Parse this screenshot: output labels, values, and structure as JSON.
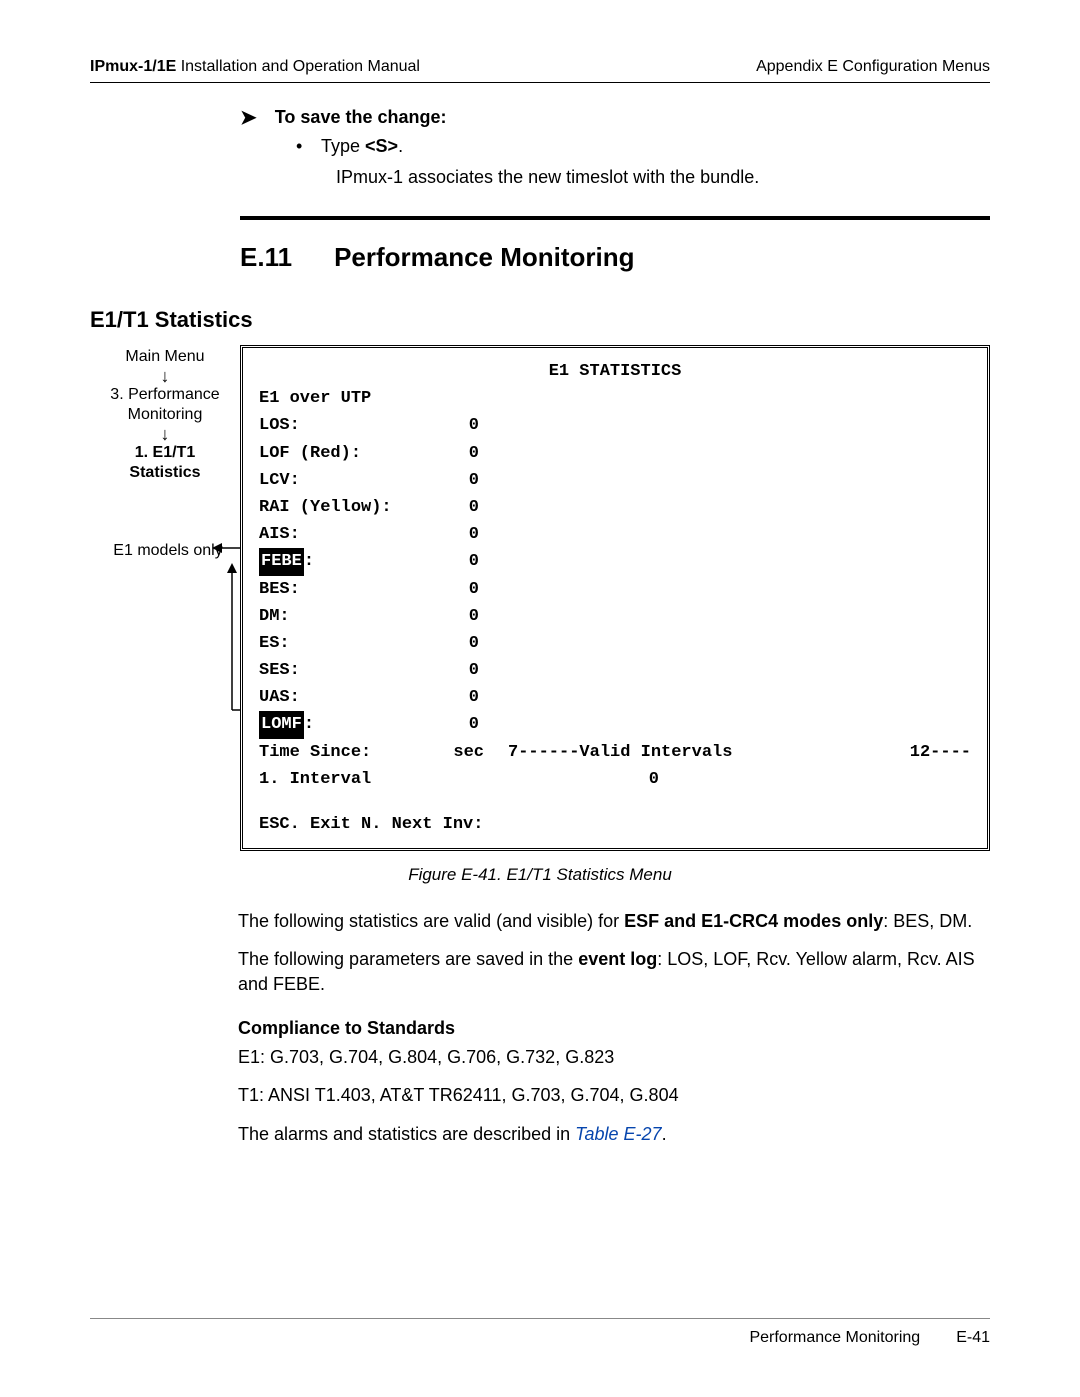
{
  "header": {
    "manual_title_prefix": "IPmux-1/1E",
    "manual_title_rest": " Installation and Operation Manual",
    "appendix": "Appendix E  Configuration Menus"
  },
  "save": {
    "heading": "To save the change:",
    "bullet": "Type ",
    "key": "<S>",
    "tail": ".",
    "assoc": "IPmux-1 associates the new timeslot with the bundle."
  },
  "section": {
    "number": "E.11",
    "title": "Performance Monitoring"
  },
  "subhead": "E1/T1 Statistics",
  "sidebar": {
    "items": [
      "Main Menu",
      "3. Performance",
      "Monitoring",
      "1. E1/T1",
      "Statistics"
    ]
  },
  "annotation": "E1 models only",
  "terminal": {
    "title": "E1 STATISTICS",
    "subtitle": "E1 over UTP",
    "stats": [
      {
        "label": "LOS:",
        "value": "0",
        "invert": false
      },
      {
        "label": "LOF (Red):",
        "value": "0",
        "invert": false
      },
      {
        "label": "LCV:",
        "value": "0",
        "invert": false
      },
      {
        "label": "RAI (Yellow):",
        "value": "0",
        "invert": false
      },
      {
        "label": "AIS:",
        "value": "0",
        "invert": false
      },
      {
        "label": "FEBE",
        "value": "0",
        "invert": true,
        "suffix": ":"
      },
      {
        "label": "BES:",
        "value": "0",
        "invert": false
      },
      {
        "label": "DM:",
        "value": "0",
        "invert": false
      },
      {
        "label": "ES:",
        "value": "0",
        "invert": false
      },
      {
        "label": "SES:",
        "value": "0",
        "invert": false
      },
      {
        "label": "UAS:",
        "value": "0",
        "invert": false
      },
      {
        "label": "LOMF",
        "value": "0",
        "invert": true,
        "suffix": ":"
      }
    ],
    "time_since_label": "Time Since:",
    "time_since_unit": "sec",
    "valid_intervals_text": "7------Valid Intervals",
    "valid_intervals_value": "12----",
    "interval_label": "1. Interval",
    "interval_value": "0",
    "bottom": "ESC. Exit   N. Next Inv:"
  },
  "figure_caption": "Figure E-41.  E1/T1 Statistics Menu",
  "paragraphs": {
    "p1a": "The following statistics are valid (and visible) for ",
    "p1b": "ESF and E1-CRC4 modes only",
    "p1c": ": BES, DM.",
    "p2a": "The following parameters are saved in the ",
    "p2b": "event log",
    "p2c": ": LOS, LOF, Rcv. Yellow alarm, Rcv. AIS and FEBE."
  },
  "compliance": {
    "heading": "Compliance to Standards",
    "e1": "E1:  G.703, G.704, G.804, G.706, G.732, G.823",
    "t1": "T1:  ANSI T1.403, AT&T TR62411, G.703, G.704, G.804",
    "alarms_pre": "The alarms and statistics are described in ",
    "alarms_link": "Table E-27",
    "alarms_post": "."
  },
  "footer": {
    "section": "Performance Monitoring",
    "page": "E-41"
  },
  "colors": {
    "text": "#000000",
    "bg": "#ffffff",
    "link": "#0645ad",
    "footer_rule": "#888888"
  }
}
